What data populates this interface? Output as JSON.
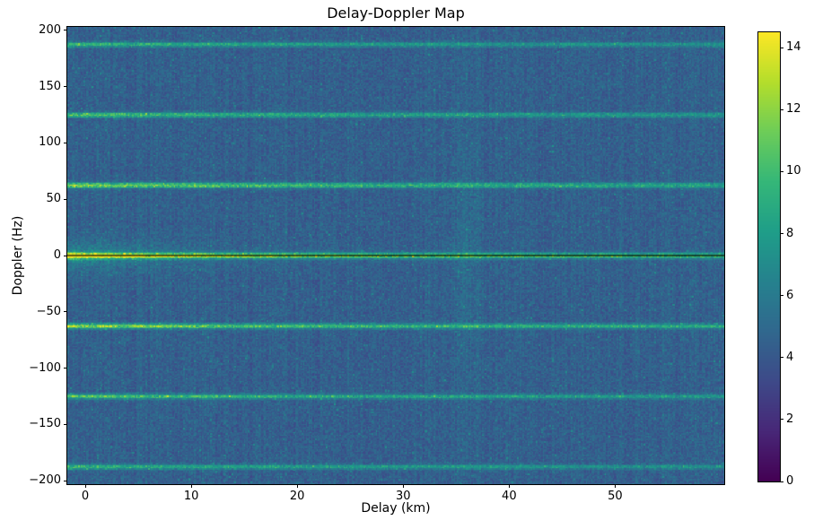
{
  "chart_data": {
    "type": "heatmap",
    "title": "Delay-Doppler Map",
    "xlabel": "Delay (km)",
    "ylabel": "Doppler (Hz)",
    "x_range": [
      -1.7,
      60.3
    ],
    "y_range": [
      -203,
      203
    ],
    "x_ticks": [
      0,
      10,
      20,
      30,
      40,
      50
    ],
    "y_ticks": [
      -200,
      -150,
      -100,
      -50,
      0,
      50,
      100,
      150,
      200
    ],
    "colormap": "viridis",
    "colorbar": {
      "min": 0,
      "max": 14.5,
      "ticks": [
        0,
        2,
        4,
        6,
        8,
        10,
        12,
        14
      ]
    },
    "noise_seed": 42,
    "background_noise": {
      "base": 3.1,
      "random_spread": 1.9,
      "column_striation": 0.7,
      "speckle_chance": 0.06,
      "speckle_boost": 2.2
    },
    "center_bright_patch": {
      "amplitude": 2.4,
      "sigma_hz": 9,
      "delay_decay_km": 10
    },
    "vertical_streak": {
      "delay_km": 36,
      "amplitude": 1.3,
      "sigma_km": 0.9
    },
    "zero_doppler_line": {
      "doppler_hz": 0,
      "color": "#000000"
    },
    "harmonic_lines": [
      {
        "doppler_hz": 0,
        "peak_amplitude": 11.0,
        "sigma_hz": 1.8,
        "delay_decay_km": 20
      },
      {
        "doppler_hz": 62.5,
        "peak_amplitude": 8.0,
        "sigma_hz": 1.6,
        "delay_decay_km": 26
      },
      {
        "doppler_hz": -62.5,
        "peak_amplitude": 8.0,
        "sigma_hz": 1.6,
        "delay_decay_km": 26
      },
      {
        "doppler_hz": 125,
        "peak_amplitude": 6.5,
        "sigma_hz": 1.5,
        "delay_decay_km": 26
      },
      {
        "doppler_hz": -125,
        "peak_amplitude": 6.5,
        "sigma_hz": 1.5,
        "delay_decay_km": 26
      },
      {
        "doppler_hz": 187.5,
        "peak_amplitude": 5.5,
        "sigma_hz": 1.5,
        "delay_decay_km": 26
      },
      {
        "doppler_hz": -187.5,
        "peak_amplitude": 5.5,
        "sigma_hz": 1.5,
        "delay_decay_km": 26
      }
    ]
  }
}
